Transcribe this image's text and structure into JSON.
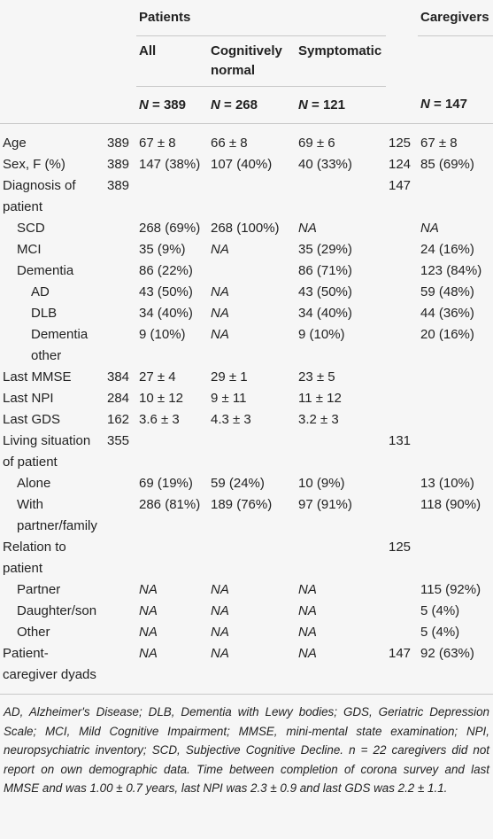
{
  "header": {
    "group_patients": "Patients",
    "group_caregivers": "Caregivers",
    "columns": [
      "All",
      "Cognitively normal",
      "Symptomatic"
    ],
    "n": [
      "N = 389",
      "N = 268",
      "N = 121",
      "N = 147"
    ]
  },
  "rows": [
    {
      "label": "Age",
      "level": 0,
      "cells": [
        "389",
        "67 ± 8",
        "66 ± 8",
        "69 ± 6",
        "125",
        "67 ± 8"
      ]
    },
    {
      "label": "Sex, F (%)",
      "level": 0,
      "cells": [
        "389",
        "147 (38%)",
        "107 (40%)",
        "40 (33%)",
        "124",
        "85 (69%)"
      ]
    },
    {
      "label": "Diagnosis of patient",
      "level": 0,
      "cells": [
        "389",
        null,
        null,
        null,
        "147",
        null
      ]
    },
    {
      "label": "SCD",
      "level": 1,
      "cells": [
        null,
        "268 (69%)",
        "268 (100%)",
        "NA",
        null,
        "NA"
      ]
    },
    {
      "label": "MCI",
      "level": 1,
      "cells": [
        null,
        "35 (9%)",
        "NA",
        "35 (29%)",
        null,
        "24 (16%)"
      ]
    },
    {
      "label": "Dementia",
      "level": 1,
      "cells": [
        null,
        "86 (22%)",
        null,
        "86 (71%)",
        null,
        "123 (84%)"
      ]
    },
    {
      "label": "AD",
      "level": 2,
      "cells": [
        null,
        "43 (50%)",
        "NA",
        "43 (50%)",
        null,
        "59 (48%)"
      ]
    },
    {
      "label": "DLB",
      "level": 2,
      "cells": [
        null,
        "34 (40%)",
        "NA",
        "34 (40%)",
        null,
        "44 (36%)"
      ]
    },
    {
      "label": "Dementia other",
      "level": 2,
      "cells": [
        null,
        "9 (10%)",
        "NA",
        "9 (10%)",
        null,
        "20 (16%)"
      ]
    },
    {
      "label": "Last MMSE",
      "level": 0,
      "cells": [
        "384",
        "27 ± 4",
        "29 ± 1",
        "23 ± 5",
        null,
        null
      ]
    },
    {
      "label": "Last NPI",
      "level": 0,
      "cells": [
        "284",
        "10 ± 12",
        "9 ± 11",
        "11 ± 12",
        null,
        null
      ]
    },
    {
      "label": "Last GDS",
      "level": 0,
      "cells": [
        "162",
        "3.6 ± 3",
        "4.3 ± 3",
        "3.2 ± 3",
        null,
        null
      ]
    },
    {
      "label": "Living situation of patient",
      "level": 0,
      "cells": [
        "355",
        null,
        null,
        null,
        "131",
        null
      ]
    },
    {
      "label": "Alone",
      "level": 1,
      "cells": [
        null,
        "69 (19%)",
        "59 (24%)",
        "10 (9%)",
        null,
        "13 (10%)"
      ]
    },
    {
      "label": "With partner/family",
      "level": 1,
      "cells": [
        null,
        "286 (81%)",
        "189 (76%)",
        "97 (91%)",
        null,
        "118 (90%)"
      ]
    },
    {
      "label": "Relation to patient",
      "level": 0,
      "cells": [
        null,
        null,
        null,
        null,
        "125",
        null
      ]
    },
    {
      "label": "Partner",
      "level": 1,
      "cells": [
        null,
        "NA",
        "NA",
        "NA",
        null,
        "115 (92%)"
      ]
    },
    {
      "label": "Daughter/son",
      "level": 1,
      "cells": [
        null,
        "NA",
        "NA",
        "NA",
        null,
        "5 (4%)"
      ]
    },
    {
      "label": "Other",
      "level": 1,
      "cells": [
        null,
        "NA",
        "NA",
        "NA",
        null,
        "5 (4%)"
      ]
    },
    {
      "label": "Patient-caregiver dyads",
      "level": 0,
      "cells": [
        null,
        "NA",
        "NA",
        "NA",
        "147",
        "92 (63%)"
      ]
    }
  ],
  "footnote": "AD, Alzheimer's Disease; DLB, Dementia with Lewy bodies; GDS, Geriatric Depression Scale; MCI, Mild Cognitive Impairment; MMSE, mini-mental state examination; NPI, neuropsychiatric inventory; SCD, Subjective Cognitive Decline. n = 22 caregivers did not report on own demographic data. Time between completion of corona survey and last MMSE and was 1.00 ± 0.7 years, last NPI was 2.3 ± 0.9 and last GDS was 2.2 ± 1.1."
}
